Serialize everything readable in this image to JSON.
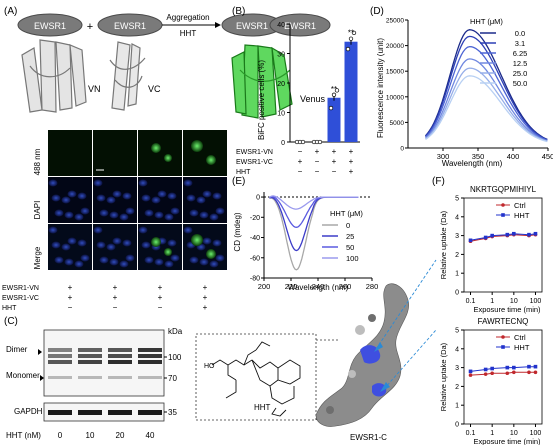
{
  "panels": {
    "A": {
      "letter": "(A)",
      "ewsr1": "EWSR1",
      "plus": "+",
      "arrow_top": "Aggregation",
      "arrow_bottom": "HHT",
      "labels": [
        "VN",
        "VC",
        "Venus"
      ],
      "row_labels": [
        "488 nm",
        "DAPI",
        "Merge"
      ],
      "cond_rows": [
        {
          "label": "EWSR1-VN",
          "signs": [
            "+",
            "+",
            "+",
            "+"
          ]
        },
        {
          "label": "EWSR1-VC",
          "signs": [
            "+",
            "+",
            "+",
            "+"
          ]
        },
        {
          "label": "HHT",
          "signs": [
            "−",
            "−",
            "−",
            "+"
          ]
        }
      ]
    },
    "B": {
      "letter": "(B)",
      "chart_data": {
        "type": "bar",
        "ylabel": "BiFC positive cells (%)",
        "ylim": [
          0,
          40
        ],
        "yticks": [
          0,
          10,
          20,
          30,
          40
        ],
        "categories": [
          "1",
          "2",
          "3",
          "4"
        ],
        "values": [
          0,
          0,
          15,
          34
        ],
        "points": [
          [
            0,
            0,
            0
          ],
          [
            0,
            0,
            0
          ],
          [
            11.5,
            16,
            17.5
          ],
          [
            31.5,
            35,
            37
          ]
        ],
        "stars": [
          "",
          "",
          "**",
          "**"
        ],
        "bar_color": "#2f4fd8",
        "cond_rows": [
          {
            "label": "EWSR1-VN",
            "signs": [
              "−",
              "+",
              "+",
              "+"
            ]
          },
          {
            "label": "EWSR1-VC",
            "signs": [
              "+",
              "−",
              "+",
              "+"
            ]
          },
          {
            "label": "HHT",
            "signs": [
              "−",
              "−",
              "−",
              "+"
            ]
          }
        ]
      }
    },
    "C": {
      "letter": "(C)",
      "kda": "kDa",
      "markers": [
        "100",
        "70",
        "35"
      ],
      "dimer": "Dimer",
      "monomer": "Monomer",
      "gapdh": "GAPDH",
      "xlabel": "HHT (nM)",
      "doses": [
        "0",
        "10",
        "20",
        "40"
      ],
      "struct_label": "HHT",
      "ewsr1c": "EWSR1-C"
    },
    "D": {
      "letter": "(D)",
      "chart_data": {
        "type": "line",
        "xlabel": "Wavelength (nm)",
        "ylabel": "Fluorescence intensity (unit)",
        "xlim": [
          250,
          450
        ],
        "xticks": [
          300,
          350,
          400,
          450
        ],
        "ylim": [
          0,
          25000
        ],
        "yticks": [
          0,
          5000,
          10000,
          15000,
          20000,
          25000
        ],
        "ytick_labels": [
          "0",
          "5000",
          "10000",
          "15000",
          "20000",
          "25000"
        ],
        "legend_title": "HHT (μM)",
        "series": [
          {
            "name": "0.0",
            "peak": 22500,
            "color": "#1b2a8a"
          },
          {
            "name": "3.1",
            "peak": 21200,
            "color": "#2c3fb5"
          },
          {
            "name": "6.25",
            "peak": 19200,
            "color": "#4c64d4"
          },
          {
            "name": "12.5",
            "peak": 16800,
            "color": "#7088e0"
          },
          {
            "name": "25.0",
            "peak": 15000,
            "color": "#96aee9"
          },
          {
            "name": "50.0",
            "peak": 13500,
            "color": "#b8d0f3"
          }
        ]
      }
    },
    "E": {
      "letter": "(E)",
      "chart_data": {
        "type": "line",
        "xlabel": "Wavelength (nm)",
        "ylabel": "CD (mdeg)",
        "xlim": [
          200,
          280
        ],
        "xticks": [
          200,
          220,
          240,
          260,
          280
        ],
        "ylim": [
          -80,
          5
        ],
        "yticks": [
          0,
          -20,
          -40,
          -60,
          -80
        ],
        "legend_title": "HHT (μM)",
        "series": [
          {
            "name": "0",
            "min": -72,
            "color": "#a8a8a8"
          },
          {
            "name": "25",
            "min": -53,
            "color": "#3c3cc8"
          },
          {
            "name": "50",
            "min": -30,
            "color": "#5a5ae0"
          },
          {
            "name": "100",
            "min": -12,
            "color": "#9a9aee"
          }
        ]
      }
    },
    "F": {
      "letter": "(F)",
      "charts": [
        {
          "title": "NKRTGQPMIHIYL",
          "ylabel": "Relative uptake (Da)",
          "xlabel": "Exposure  time (min)",
          "xticks": [
            "0.1",
            "1",
            "10",
            "100"
          ],
          "yticks": [
            "0",
            "1",
            "2",
            "3",
            "4",
            "5"
          ],
          "ylim": [
            0,
            5
          ],
          "ctrl": [
            2.7,
            2.85,
            2.95,
            3.0,
            3.05,
            3.0,
            3.05
          ],
          "hht": [
            2.75,
            2.9,
            3.0,
            3.05,
            3.1,
            3.05,
            3.1
          ],
          "legend": [
            "Ctrl",
            "HHT"
          ]
        },
        {
          "title": "FAWRTECNQ",
          "ylabel": "Relative uptake (Da)",
          "xlabel": "Exposure  time (min)",
          "xticks": [
            "0.1",
            "1",
            "10",
            "100"
          ],
          "yticks": [
            "0",
            "1",
            "2",
            "3",
            "4",
            "5"
          ],
          "ylim": [
            0,
            5
          ],
          "ctrl": [
            2.6,
            2.65,
            2.7,
            2.7,
            2.75,
            2.75,
            2.75
          ],
          "hht": [
            2.8,
            2.9,
            2.95,
            3.0,
            3.0,
            3.05,
            3.05
          ],
          "legend": [
            "Ctrl",
            "HHT"
          ]
        }
      ],
      "times": [
        0.1,
        0.5,
        1,
        5,
        10,
        50,
        100
      ],
      "ctrl_color": "#c0282d",
      "hht_color": "#2233cc"
    }
  }
}
